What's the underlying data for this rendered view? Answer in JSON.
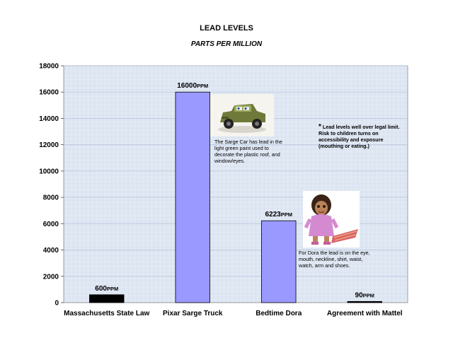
{
  "chart_data": {
    "type": "bar",
    "title": "LEAD LEVELS",
    "subtitle": "PARTS PER MILLION",
    "categories": [
      "Massachusetts State Law",
      "Pixar Sarge Truck",
      "Bedtime Dora",
      "Agreement with Mattel"
    ],
    "values": [
      600,
      16000,
      6223,
      90
    ],
    "value_labels": [
      "600",
      "16000",
      "6223",
      "90"
    ],
    "value_unit": "PPM",
    "bar_colors": [
      "#000000",
      "#9999ff",
      "#9999ff",
      "#000000"
    ],
    "ylim": [
      0,
      18000
    ],
    "yticks": [
      0,
      2000,
      4000,
      6000,
      8000,
      10000,
      12000,
      14000,
      16000,
      18000
    ],
    "grid": true,
    "plot_background": "#dde6f2",
    "xlabel": "",
    "ylabel": ""
  },
  "annotations": {
    "sarge_note": "The Sarge Car has lead in the light green paint used to decorate the plastic roof, and window/eyes.",
    "warning_asterisk": "*",
    "warning_note": "Lead levels well over legal limit.  Risk to children turns on accessibility and exposure (mouthing or eating.)",
    "dora_note": "For Dora the lead is on the eye, mouth, neckline, shirt, waist, watch, arm and shoes."
  },
  "images": {
    "sarge": "sarge-toy-car-image",
    "dora": "dora-toy-figure-image"
  }
}
